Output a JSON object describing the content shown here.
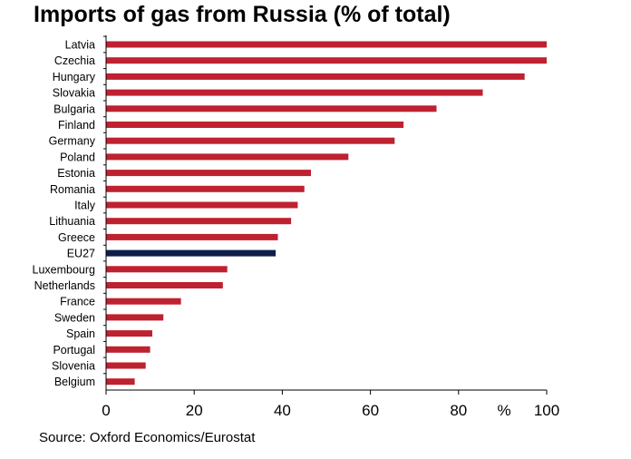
{
  "title": "Imports of gas from Russia (% of total)",
  "source": "Source: Oxford Economics/Eurostat",
  "colors": {
    "bar": "#be2130",
    "highlight": "#0f1d4a",
    "axis": "#000000"
  },
  "chart_data": {
    "type": "bar",
    "orientation": "horizontal",
    "title": "Imports of gas from Russia (% of total)",
    "xlabel": "%",
    "ylabel": "",
    "xlim": [
      0,
      100
    ],
    "xticks": [
      0,
      20,
      40,
      60,
      80,
      100
    ],
    "xtick_labels": [
      "0",
      "20",
      "40",
      "60",
      "80",
      "100"
    ],
    "unit_label": "%",
    "highlight": "EU27",
    "categories": [
      "Latvia",
      "Czechia",
      "Hungary",
      "Slovakia",
      "Bulgaria",
      "Finland",
      "Germany",
      "Poland",
      "Estonia",
      "Romania",
      "Italy",
      "Lithuania",
      "Greece",
      "EU27",
      "Luxembourg",
      "Netherlands",
      "France",
      "Sweden",
      "Spain",
      "Portugal",
      "Slovenia",
      "Belgium"
    ],
    "values": [
      100,
      100,
      95,
      85.5,
      75,
      67.5,
      65.5,
      55,
      46.5,
      45,
      43.5,
      42,
      39,
      38.5,
      27.5,
      26.5,
      17,
      13,
      10.5,
      10,
      9,
      6.5
    ],
    "grid": false,
    "legend": "none"
  }
}
